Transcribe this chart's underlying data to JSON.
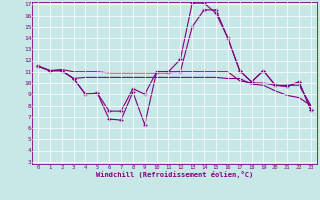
{
  "xlabel": "Windchill (Refroidissement éolien,°C)",
  "bg_color": "#c8e8e8",
  "line_color": "#800080",
  "grid_color": "#ffffff",
  "hours": [
    0,
    1,
    2,
    3,
    4,
    5,
    6,
    7,
    8,
    9,
    10,
    11,
    12,
    13,
    14,
    15,
    16,
    17,
    18,
    19,
    20,
    21,
    22,
    23
  ],
  "line1": [
    11.5,
    11.1,
    11.1,
    10.4,
    9.0,
    9.1,
    6.8,
    6.7,
    9.2,
    6.3,
    11.0,
    11.0,
    12.1,
    17.1,
    17.1,
    16.2,
    14.0,
    11.1,
    10.1,
    11.1,
    9.8,
    9.7,
    10.1,
    7.6
  ],
  "line2": [
    11.5,
    11.1,
    11.1,
    10.4,
    9.0,
    9.1,
    7.5,
    7.5,
    9.5,
    9.0,
    11.0,
    11.0,
    11.0,
    15.0,
    16.5,
    16.5,
    14.0,
    11.1,
    10.1,
    11.1,
    9.8,
    9.7,
    10.1,
    7.6
  ],
  "line3": [
    11.5,
    11.1,
    11.2,
    11.0,
    11.0,
    11.0,
    10.9,
    10.9,
    10.9,
    10.9,
    10.9,
    10.9,
    11.0,
    11.0,
    11.0,
    11.0,
    11.0,
    10.2,
    10.0,
    10.0,
    9.8,
    9.8,
    9.8,
    8.0
  ],
  "line4": [
    11.5,
    11.1,
    11.1,
    10.4,
    10.5,
    10.5,
    10.5,
    10.5,
    10.5,
    10.5,
    10.5,
    10.5,
    10.5,
    10.5,
    10.5,
    10.5,
    10.4,
    10.4,
    9.9,
    9.8,
    9.3,
    8.9,
    8.7,
    8.0
  ],
  "ylim": [
    3,
    17
  ],
  "yticks": [
    3,
    4,
    5,
    6,
    7,
    8,
    9,
    10,
    11,
    12,
    13,
    14,
    15,
    16,
    17
  ],
  "xlim": [
    0,
    23
  ]
}
